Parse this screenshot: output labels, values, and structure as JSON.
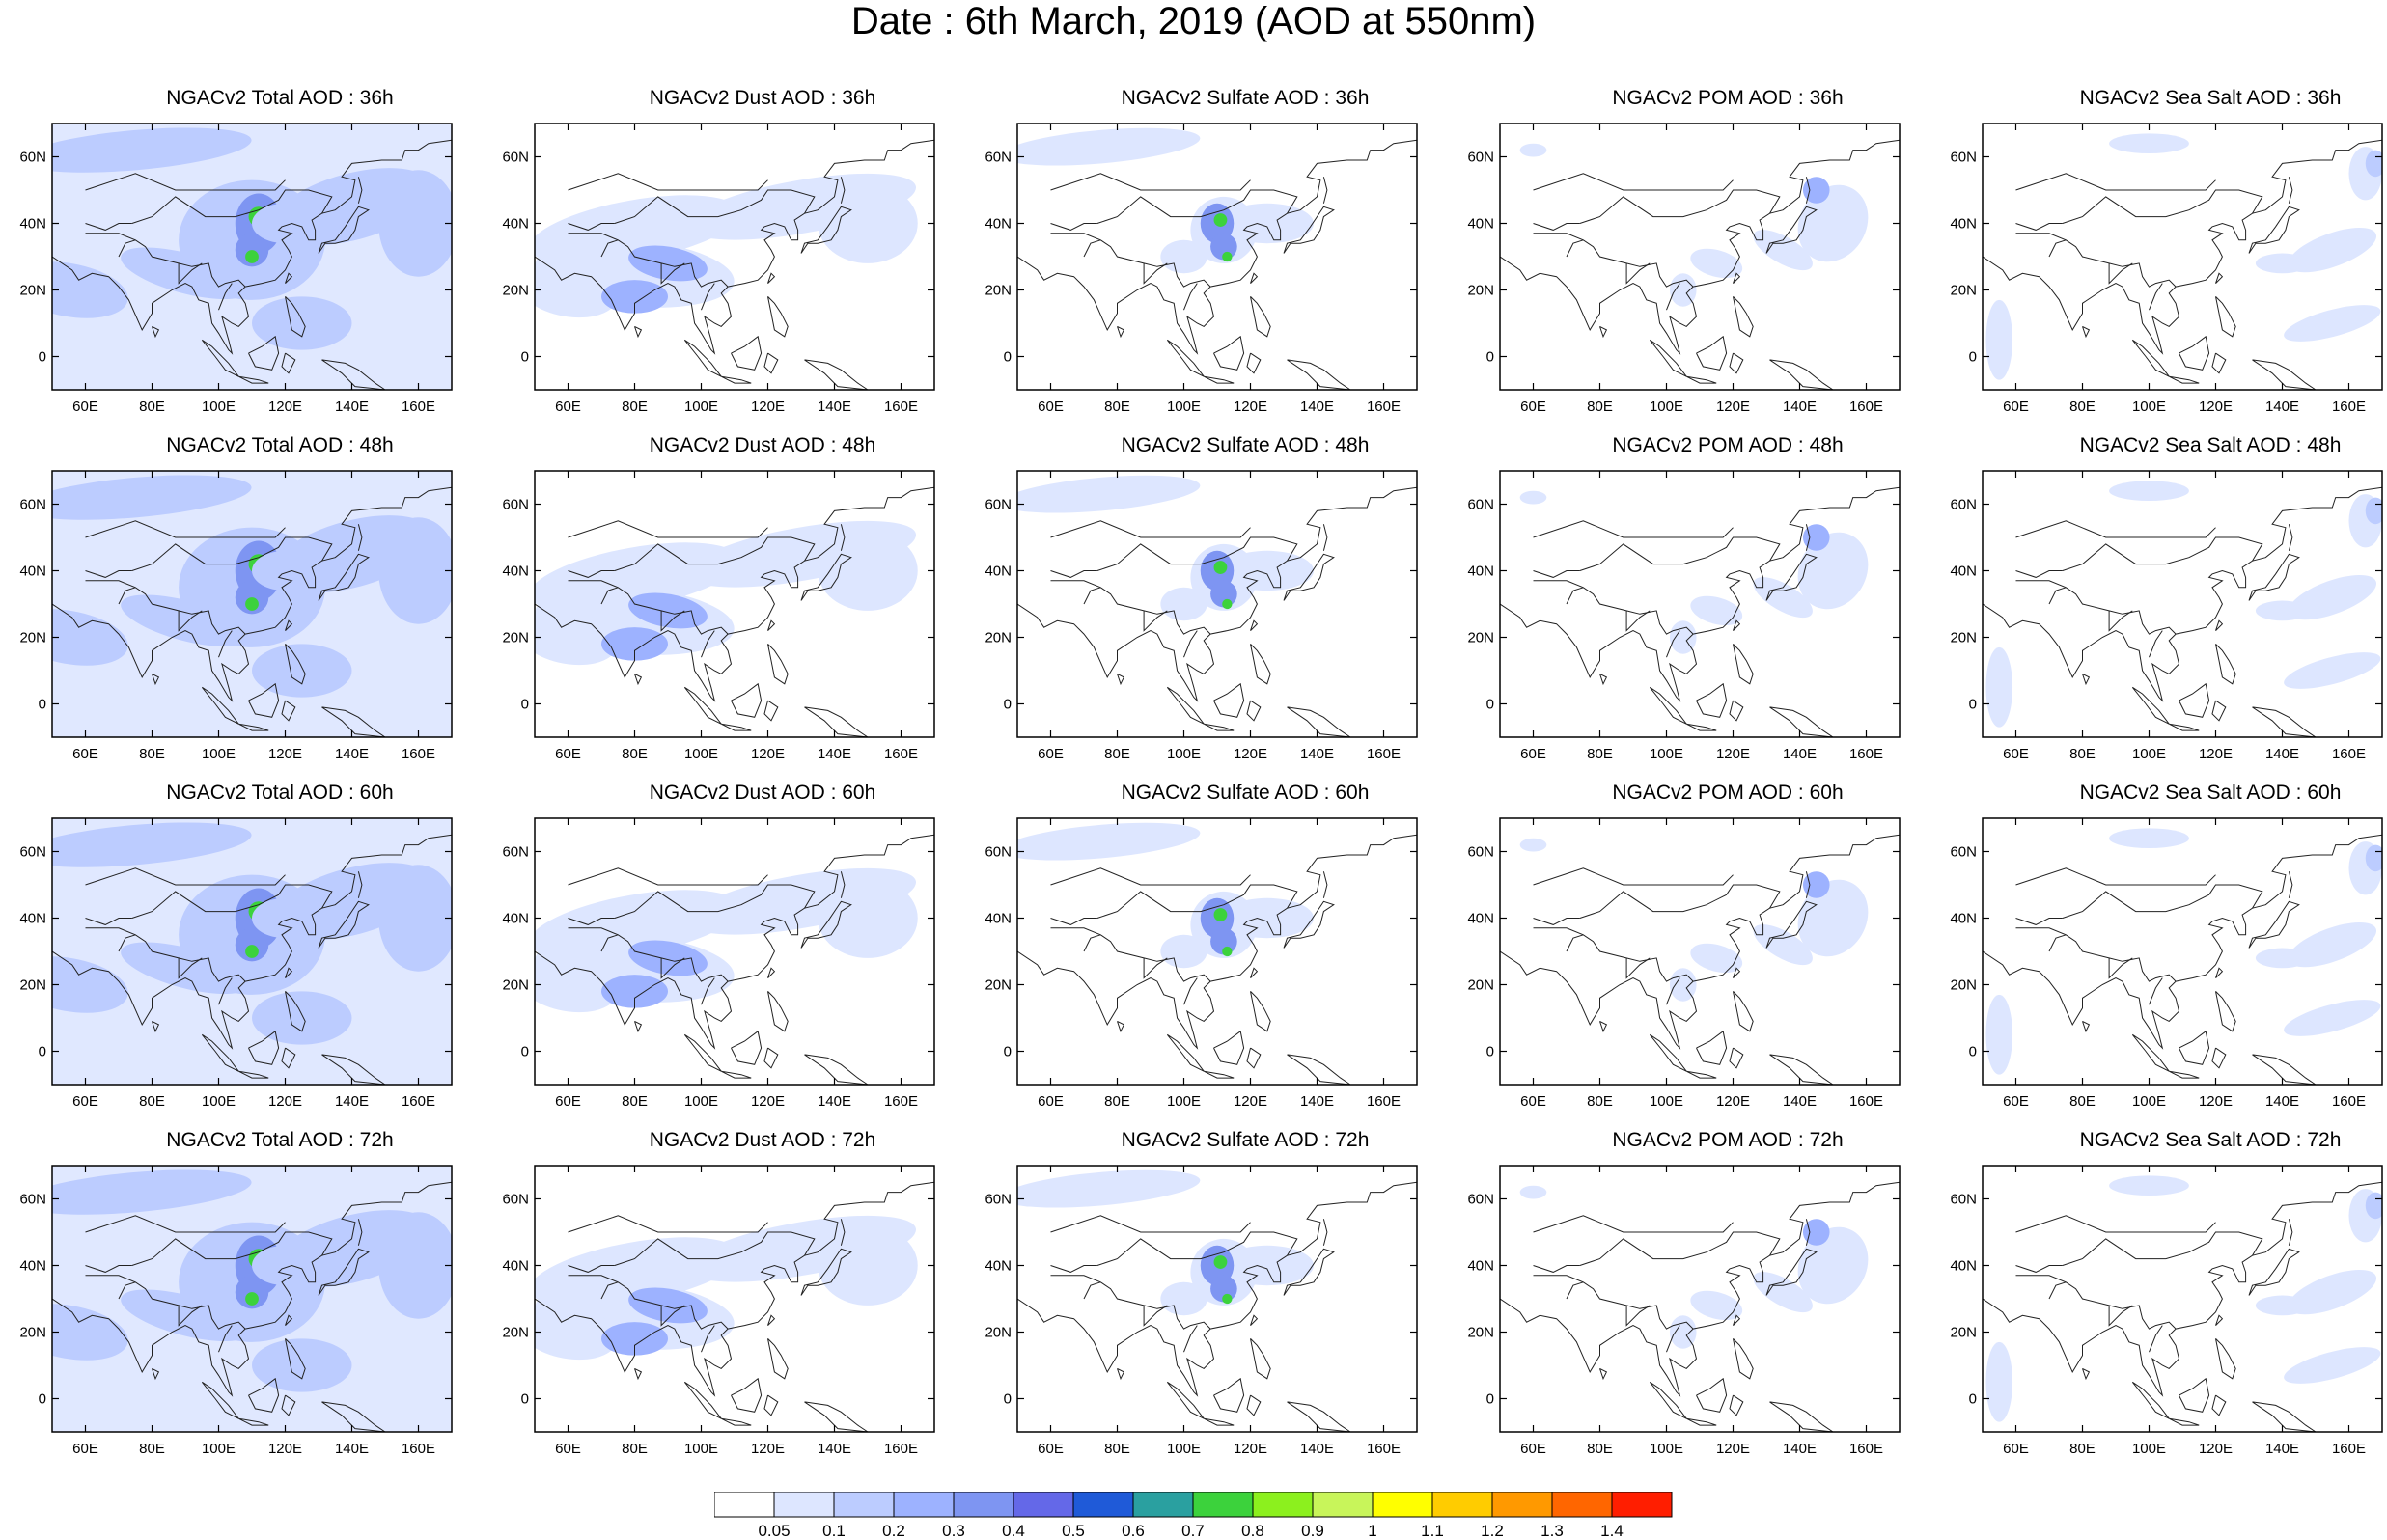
{
  "title": "Date : 6th March, 2019 (AOD at 550nm)",
  "panels": [
    [
      "NGACv2 Total AOD : 36h",
      "NGACv2 Dust AOD : 36h",
      "NGACv2 Sulfate AOD : 36h",
      "NGACv2 POM AOD : 36h",
      "NGACv2 Sea Salt AOD : 36h"
    ],
    [
      "NGACv2 Total AOD : 48h",
      "NGACv2 Dust AOD : 48h",
      "NGACv2 Sulfate AOD : 48h",
      "NGACv2 POM AOD : 48h",
      "NGACv2 Sea Salt AOD : 48h"
    ],
    [
      "NGACv2 Total AOD : 60h",
      "NGACv2 Dust AOD : 60h",
      "NGACv2 Sulfate AOD : 60h",
      "NGACv2 POM AOD : 60h",
      "NGACv2 Sea Salt AOD : 60h"
    ],
    [
      "NGACv2 Total AOD : 72h",
      "NGACv2 Dust AOD : 72h",
      "NGACv2 Sulfate AOD : 72h",
      "NGACv2 POM AOD : 72h",
      "NGACv2 Sea Salt  AOD : 72h"
    ]
  ],
  "map": {
    "lon_range": [
      50,
      170
    ],
    "lat_range": [
      -10,
      70
    ],
    "lon_ticks": [
      60,
      80,
      100,
      120,
      140,
      160
    ],
    "lon_labels": [
      "60E",
      "80E",
      "100E",
      "120E",
      "140E",
      "160E"
    ],
    "lat_ticks": [
      0,
      20,
      40,
      60
    ],
    "lat_labels": [
      "0",
      "20N",
      "40N",
      "60N"
    ]
  },
  "colorbar": {
    "levels": [
      "0.05",
      "0.1",
      "0.2",
      "0.3",
      "0.4",
      "0.5",
      "0.6",
      "0.7",
      "0.8",
      "0.9",
      "1",
      "1.1",
      "1.2",
      "1.3",
      "1.4"
    ],
    "colors": [
      "#ffffff",
      "#dde6ff",
      "#bcccff",
      "#9db2ff",
      "#7e95f2",
      "#6468e8",
      "#1f5ad8",
      "#2aa0a0",
      "#3cd23c",
      "#8cf01e",
      "#c8f55a",
      "#ffff00",
      "#ffcc00",
      "#ff9900",
      "#ff6600",
      "#ff1e00"
    ]
  },
  "series_levels": {
    "total": {
      "land_bg": 1,
      "band": 2,
      "hot": 4,
      "peak": 8
    },
    "dust": {
      "band": 1,
      "core": 3
    },
    "sulfate": {
      "band": 1,
      "hot": 4,
      "peak": 8
    },
    "pom": {
      "band": 1,
      "hot": 3
    },
    "seasalt": {
      "band": 1,
      "hot": 2
    }
  }
}
